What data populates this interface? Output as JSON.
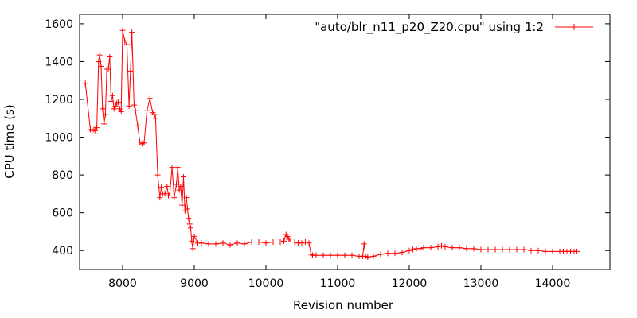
{
  "chart_data": {
    "type": "line",
    "xlabel": "Revision number",
    "ylabel": "CPU time (s)",
    "xlim": [
      7400,
      14800
    ],
    "ylim": [
      300,
      1650
    ],
    "xticks": [
      8000,
      9000,
      10000,
      11000,
      12000,
      13000,
      14000
    ],
    "yticks": [
      400,
      600,
      800,
      1000,
      1200,
      1400,
      1600
    ],
    "grid": false,
    "legend_position": "top-right",
    "series": [
      {
        "name": "\"auto/blr_n11_p20_Z20.cpu\" using 1:2",
        "color": "#ff0000",
        "marker": "plus",
        "x": [
          7480,
          7550,
          7575,
          7600,
          7620,
          7640,
          7665,
          7680,
          7700,
          7720,
          7740,
          7760,
          7780,
          7800,
          7820,
          7840,
          7860,
          7880,
          7900,
          7920,
          7940,
          7960,
          7980,
          8000,
          8030,
          8060,
          8090,
          8110,
          8130,
          8160,
          8180,
          8210,
          8240,
          8270,
          8300,
          8340,
          8380,
          8420,
          8440,
          8460,
          8490,
          8520,
          8540,
          8560,
          8590,
          8620,
          8640,
          8660,
          8690,
          8720,
          8750,
          8770,
          8790,
          8810,
          8830,
          8850,
          8870,
          8890,
          8905,
          8920,
          8935,
          8950,
          8965,
          8980,
          9000,
          9050,
          9100,
          9200,
          9300,
          9400,
          9500,
          9600,
          9700,
          9800,
          9900,
          10000,
          10100,
          10200,
          10250,
          10280,
          10300,
          10320,
          10350,
          10400,
          10450,
          10500,
          10550,
          10600,
          10630,
          10650,
          10700,
          10800,
          10900,
          11000,
          11100,
          11200,
          11300,
          11350,
          11370,
          11390,
          11420,
          11500,
          11600,
          11700,
          11800,
          11900,
          12000,
          12050,
          12100,
          12150,
          12200,
          12300,
          12400,
          12450,
          12500,
          12600,
          12700,
          12800,
          12900,
          13000,
          13100,
          13200,
          13300,
          13400,
          13500,
          13600,
          13700,
          13800,
          13900,
          14000,
          14100,
          14150,
          14200,
          14250,
          14300,
          14340
        ],
        "y": [
          1285,
          1040,
          1035,
          1040,
          1035,
          1050,
          1400,
          1435,
          1375,
          1150,
          1070,
          1120,
          1360,
          1360,
          1425,
          1190,
          1220,
          1150,
          1165,
          1180,
          1185,
          1150,
          1135,
          1565,
          1510,
          1490,
          1165,
          1350,
          1555,
          1170,
          1140,
          1060,
          975,
          965,
          970,
          1140,
          1205,
          1130,
          1120,
          1100,
          800,
          680,
          735,
          700,
          700,
          740,
          690,
          710,
          840,
          680,
          750,
          840,
          720,
          740,
          640,
          790,
          610,
          680,
          620,
          570,
          540,
          520,
          450,
          410,
          475,
          440,
          440,
          435,
          435,
          440,
          430,
          440,
          435,
          445,
          445,
          440,
          445,
          445,
          450,
          485,
          475,
          460,
          445,
          445,
          440,
          440,
          445,
          440,
          380,
          375,
          375,
          375,
          375,
          375,
          375,
          375,
          370,
          370,
          435,
          370,
          365,
          370,
          380,
          385,
          385,
          390,
          400,
          405,
          410,
          410,
          415,
          415,
          420,
          425,
          420,
          415,
          415,
          410,
          410,
          405,
          405,
          405,
          405,
          405,
          405,
          405,
          400,
          400,
          395,
          395,
          395,
          395,
          395,
          395,
          395,
          395
        ]
      }
    ]
  }
}
